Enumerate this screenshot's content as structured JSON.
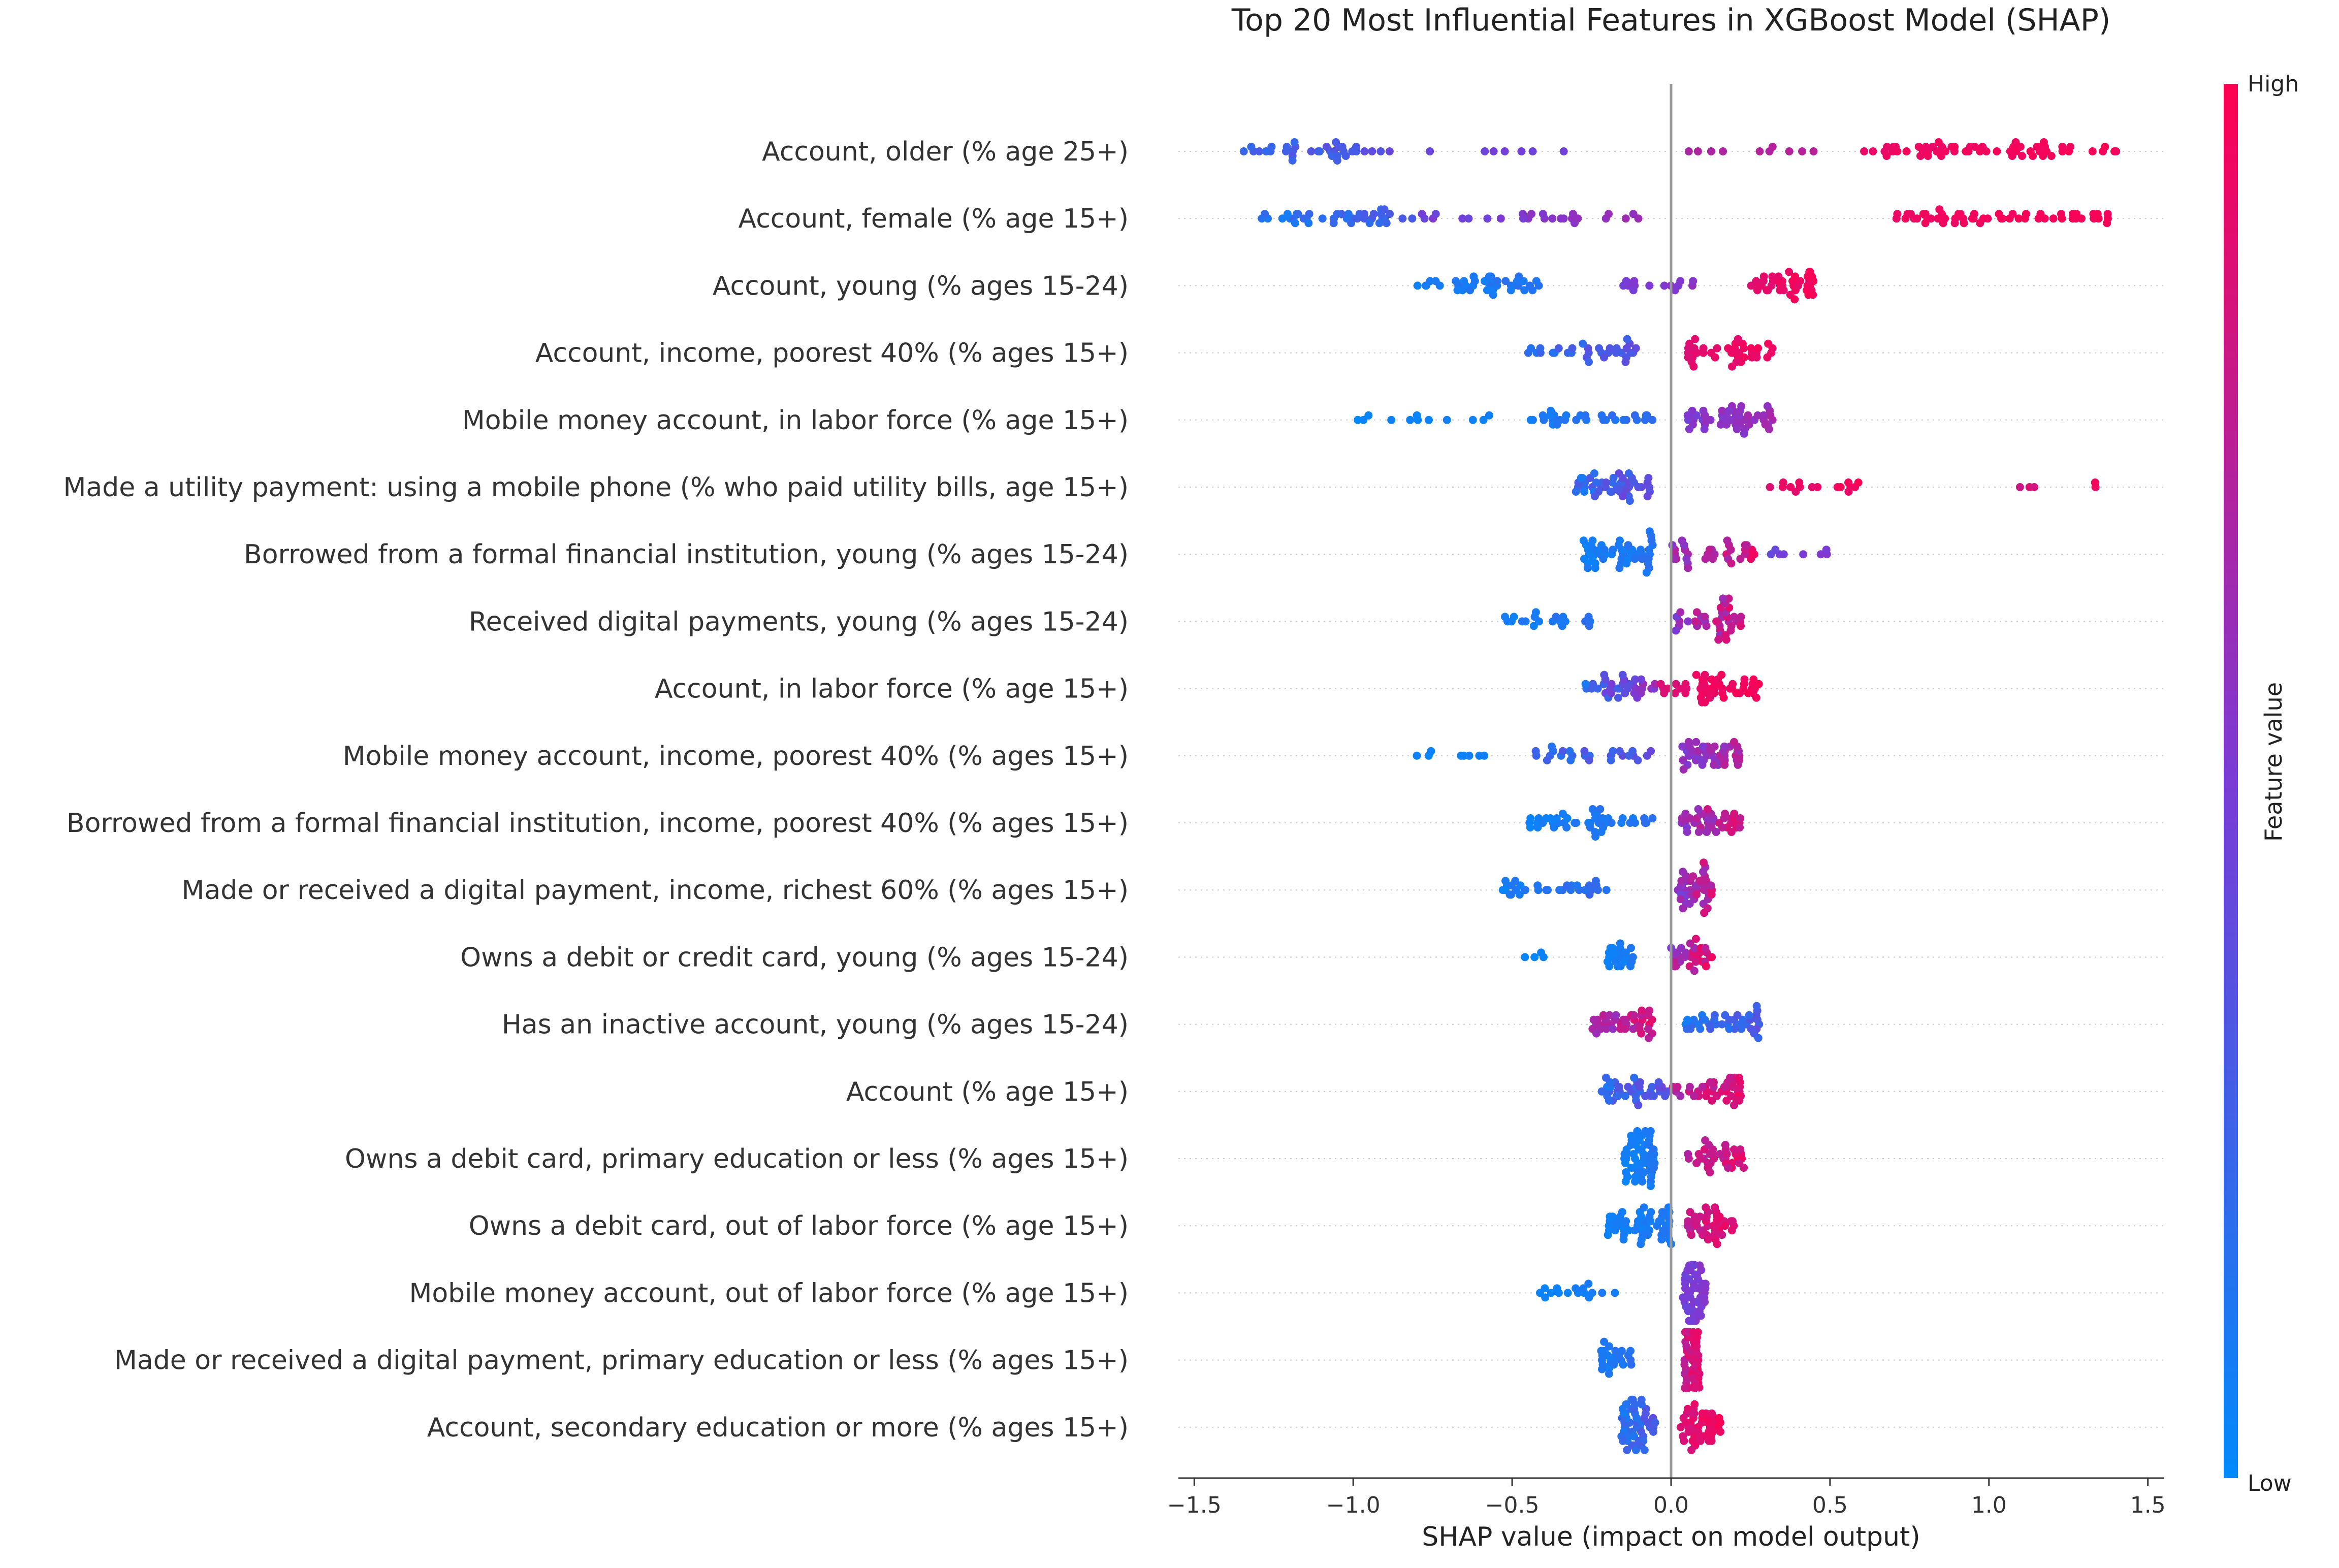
{
  "chart_data": {
    "type": "scatter",
    "subtype": "shap-beeswarm",
    "title": "Top 20 Most Influential Features in XGBoost Model (SHAP)",
    "xlabel": "SHAP value (impact on model output)",
    "xlim": [
      -1.55,
      1.55
    ],
    "xticks": [
      -1.5,
      -1.0,
      -0.5,
      0.0,
      0.5,
      1.0,
      1.5
    ],
    "xtick_labels": [
      "−1.5",
      "−1.0",
      "−0.5",
      "0.0",
      "0.5",
      "1.0",
      "1.5"
    ],
    "colorbar": {
      "label": "Feature value",
      "high_label": "High",
      "low_label": "Low",
      "low_color": "#008afb",
      "high_color": "#ff0051",
      "mid_color": "#7a3bd6"
    },
    "zero_line_color": "#999999",
    "features": [
      {
        "name": "Account, older (% age 25+)",
        "clusters": [
          [
            -1.4,
            -0.9,
            34,
            0.15,
            0.42
          ],
          [
            -0.9,
            -0.2,
            8,
            0.4,
            0.5
          ],
          [
            0.05,
            0.45,
            10,
            0.65,
            0.75
          ],
          [
            0.6,
            1.42,
            60,
            0.9,
            1.0
          ]
        ]
      },
      {
        "name": "Account, female (% age 15+)",
        "clusters": [
          [
            -1.3,
            -0.8,
            40,
            0.05,
            0.35
          ],
          [
            -0.8,
            -0.3,
            20,
            0.4,
            0.62
          ],
          [
            -0.3,
            -0.05,
            6,
            0.55,
            0.65
          ],
          [
            0.7,
            1.4,
            55,
            0.92,
            1.0
          ]
        ]
      },
      {
        "name": "Account, young (% ages 15-24)",
        "clusters": [
          [
            -0.8,
            -0.4,
            40,
            0.02,
            0.2
          ],
          [
            -0.2,
            0.1,
            14,
            0.45,
            0.6
          ],
          [
            0.25,
            0.45,
            40,
            0.85,
            1.0
          ]
        ]
      },
      {
        "name": "Account, income, poorest 40% (% ages 15+)",
        "clusters": [
          [
            -0.45,
            -0.1,
            32,
            0.1,
            0.45
          ],
          [
            0.05,
            0.35,
            40,
            0.85,
            1.0
          ]
        ]
      },
      {
        "name": "Mobile money account, in labor force (% age 15+)",
        "clusters": [
          [
            -1.02,
            -0.55,
            12,
            0.0,
            0.1
          ],
          [
            -0.45,
            -0.05,
            30,
            0.05,
            0.25
          ],
          [
            0.05,
            0.32,
            50,
            0.45,
            0.7
          ]
        ]
      },
      {
        "name": "Made a utility payment: using a mobile phone (% who paid utility bills, age 15+)",
        "clusters": [
          [
            -0.3,
            -0.05,
            45,
            0.05,
            0.55
          ],
          [
            0.25,
            0.6,
            16,
            0.85,
            1.0
          ],
          [
            0.95,
            1.35,
            5,
            0.7,
            1.0
          ]
        ]
      },
      {
        "name": "Borrowed from a formal financial institution, young (% ages 15-24)",
        "clusters": [
          [
            -0.28,
            -0.05,
            50,
            0.02,
            0.2
          ],
          [
            0.0,
            0.28,
            35,
            0.5,
            1.0
          ],
          [
            0.28,
            0.53,
            8,
            0.4,
            0.55
          ]
        ]
      },
      {
        "name": "Received digital payments, young (% ages 15-24)",
        "clusters": [
          [
            -0.55,
            -0.25,
            20,
            0.02,
            0.2
          ],
          [
            0.0,
            0.22,
            40,
            0.4,
            1.0
          ]
        ]
      },
      {
        "name": "Account, in labor force (% age 15+)",
        "clusters": [
          [
            -0.27,
            -0.05,
            35,
            0.1,
            0.7
          ],
          [
            -0.05,
            0.05,
            10,
            0.8,
            0.95
          ],
          [
            0.07,
            0.28,
            40,
            0.9,
            1.0
          ]
        ]
      },
      {
        "name": "Mobile money account, income, poorest 40% (% ages 15+)",
        "clusters": [
          [
            -0.85,
            -0.55,
            8,
            0.0,
            0.1
          ],
          [
            -0.45,
            -0.05,
            26,
            0.1,
            0.45
          ],
          [
            0.03,
            0.22,
            45,
            0.45,
            0.8
          ]
        ]
      },
      {
        "name": "Borrowed from a formal financial institution, income, poorest 40% (% ages 15+)",
        "clusters": [
          [
            -0.45,
            -0.05,
            45,
            0.02,
            0.2
          ],
          [
            0.03,
            0.22,
            40,
            0.45,
            0.95
          ]
        ]
      },
      {
        "name": "Made or received a digital payment, income, richest 60% (% ages 15+)",
        "clusters": [
          [
            -0.53,
            -0.2,
            32,
            0.02,
            0.25
          ],
          [
            0.02,
            0.13,
            40,
            0.4,
            0.95
          ]
        ]
      },
      {
        "name": "Owns a debit or credit card, young (% ages 15-24)",
        "clusters": [
          [
            -0.48,
            -0.3,
            4,
            0.0,
            0.1
          ],
          [
            -0.2,
            -0.1,
            22,
            0.02,
            0.15
          ],
          [
            0.0,
            0.13,
            30,
            0.5,
            1.0
          ]
        ]
      },
      {
        "name": "Has an inactive account, young (% ages 15-24)",
        "clusters": [
          [
            -0.25,
            -0.05,
            40,
            0.5,
            0.95
          ],
          [
            0.03,
            0.28,
            40,
            0.05,
            0.4
          ]
        ]
      },
      {
        "name": "Account (% age 15+)",
        "clusters": [
          [
            -0.22,
            0.0,
            40,
            0.05,
            0.5
          ],
          [
            0.0,
            0.22,
            40,
            0.6,
            1.0
          ]
        ]
      },
      {
        "name": "Owns a debit card, primary education or less (% ages 15+)",
        "clusters": [
          [
            -0.15,
            -0.05,
            55,
            0.02,
            0.15
          ],
          [
            0.05,
            0.23,
            35,
            0.6,
            1.0
          ]
        ]
      },
      {
        "name": "Owns a debit card, out of labor force (% age 15+)",
        "clusters": [
          [
            -0.2,
            0.0,
            55,
            0.02,
            0.15
          ],
          [
            0.05,
            0.2,
            40,
            0.7,
            1.0
          ]
        ]
      },
      {
        "name": "Mobile money account, out of labor force (% age 15+)",
        "clusters": [
          [
            -0.42,
            -0.17,
            16,
            0.02,
            0.12
          ],
          [
            0.03,
            0.11,
            50,
            0.4,
            0.6
          ]
        ]
      },
      {
        "name": "Made or received a digital payment, primary education or less (% ages 15+)",
        "clusters": [
          [
            -0.22,
            -0.12,
            25,
            0.05,
            0.2
          ],
          [
            0.04,
            0.09,
            55,
            0.7,
            1.0
          ]
        ]
      },
      {
        "name": "Account, secondary education or more (% ages 15+)",
        "clusters": [
          [
            -0.16,
            -0.05,
            50,
            0.05,
            0.4
          ],
          [
            0.03,
            0.16,
            45,
            0.8,
            1.0
          ]
        ]
      }
    ]
  }
}
